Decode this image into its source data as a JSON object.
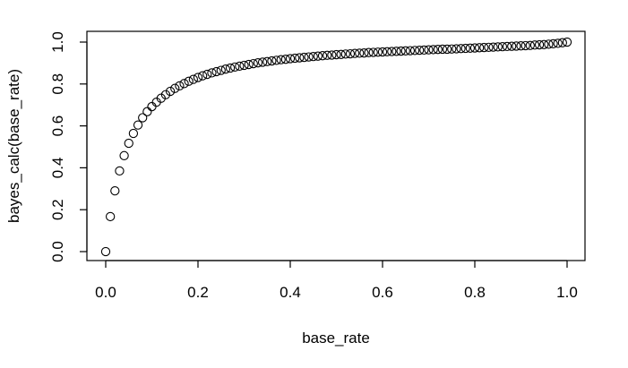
{
  "chart_data": {
    "type": "scatter",
    "title": "",
    "xlabel": "base_rate",
    "ylabel": "bayes_calc(base_rate)",
    "xlim": [
      0,
      1
    ],
    "ylim": [
      0,
      1
    ],
    "xticks": [
      0.0,
      0.2,
      0.4,
      0.6,
      0.8,
      1.0
    ],
    "xtick_labels": [
      "0.0",
      "0.2",
      "0.4",
      "0.6",
      "0.8",
      "1.0"
    ],
    "yticks": [
      0.0,
      0.2,
      0.4,
      0.6,
      0.8,
      1.0
    ],
    "ytick_labels": [
      "0.0",
      "0.2",
      "0.4",
      "0.6",
      "0.8",
      "1.0"
    ],
    "grid": false,
    "legend": "none",
    "marker": "open-circle",
    "x": [
      0.0,
      0.01,
      0.02,
      0.03,
      0.04,
      0.05,
      0.06,
      0.07,
      0.08,
      0.09,
      0.1,
      0.11,
      0.12,
      0.13,
      0.14,
      0.15,
      0.16,
      0.17,
      0.18,
      0.19,
      0.2,
      0.21,
      0.22,
      0.23,
      0.24,
      0.25,
      0.26,
      0.27,
      0.28,
      0.29,
      0.3,
      0.31,
      0.32,
      0.33,
      0.34,
      0.35,
      0.36,
      0.37,
      0.38,
      0.39,
      0.4,
      0.41,
      0.42,
      0.43,
      0.44,
      0.45,
      0.46,
      0.47,
      0.48,
      0.49,
      0.5,
      0.51,
      0.52,
      0.53,
      0.54,
      0.55,
      0.56,
      0.57,
      0.58,
      0.59,
      0.6,
      0.61,
      0.62,
      0.63,
      0.64,
      0.65,
      0.66,
      0.67,
      0.68,
      0.69,
      0.7,
      0.71,
      0.72,
      0.73,
      0.74,
      0.75,
      0.76,
      0.77,
      0.78,
      0.79,
      0.8,
      0.81,
      0.82,
      0.83,
      0.84,
      0.85,
      0.86,
      0.87,
      0.88,
      0.89,
      0.9,
      0.91,
      0.92,
      0.93,
      0.94,
      0.95,
      0.96,
      0.97,
      0.98,
      0.99,
      1.0
    ],
    "y": [
      0.0,
      0.167,
      0.29,
      0.385,
      0.458,
      0.517,
      0.564,
      0.604,
      0.639,
      0.668,
      0.692,
      0.713,
      0.732,
      0.749,
      0.765,
      0.779,
      0.791,
      0.802,
      0.813,
      0.822,
      0.831,
      0.839,
      0.846,
      0.853,
      0.859,
      0.865,
      0.871,
      0.876,
      0.881,
      0.885,
      0.889,
      0.893,
      0.897,
      0.901,
      0.904,
      0.907,
      0.91,
      0.913,
      0.916,
      0.918,
      0.921,
      0.923,
      0.925,
      0.927,
      0.929,
      0.931,
      0.933,
      0.935,
      0.937,
      0.938,
      0.94,
      0.941,
      0.943,
      0.944,
      0.946,
      0.947,
      0.948,
      0.95,
      0.951,
      0.952,
      0.953,
      0.954,
      0.955,
      0.956,
      0.957,
      0.958,
      0.959,
      0.96,
      0.961,
      0.962,
      0.963,
      0.964,
      0.965,
      0.966,
      0.966,
      0.967,
      0.968,
      0.969,
      0.97,
      0.971,
      0.972,
      0.973,
      0.974,
      0.975,
      0.976,
      0.977,
      0.978,
      0.979,
      0.98,
      0.981,
      0.982,
      0.983,
      0.984,
      0.986,
      0.987,
      0.988,
      0.99,
      0.992,
      0.994,
      0.997,
      1.0
    ]
  }
}
